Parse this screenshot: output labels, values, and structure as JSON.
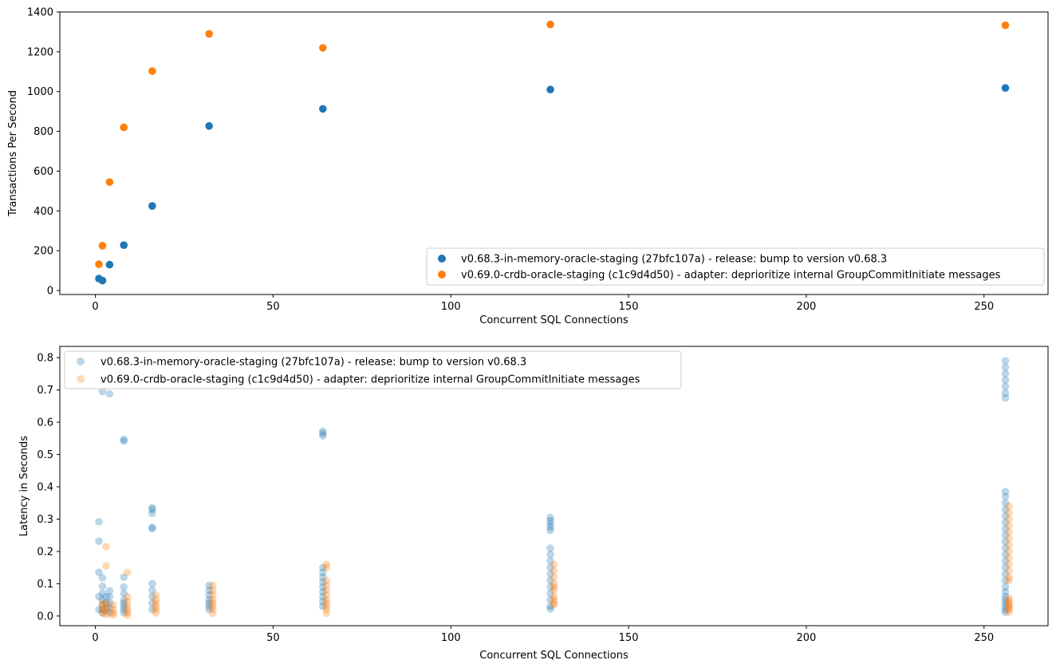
{
  "colors": {
    "series_a": "#1f77b4",
    "series_b": "#ff7f0e"
  },
  "chart_data": [
    {
      "type": "scatter",
      "xlabel": "Concurrent SQL Connections",
      "ylabel": "Transactions Per Second",
      "xlim": [
        -10,
        268
      ],
      "ylim": [
        -20,
        1400
      ],
      "x_ticks": [
        0,
        50,
        100,
        150,
        200,
        250
      ],
      "y_ticks": [
        0,
        200,
        400,
        600,
        800,
        1000,
        1200,
        1400
      ],
      "legend_position": "bottom-right",
      "grid": false,
      "series": [
        {
          "name": "v0.68.3-in-memory-oracle-staging (27bfc107a) - release: bump to version v0.68.3",
          "x": [
            1,
            2,
            4,
            8,
            16,
            32,
            64,
            128,
            256
          ],
          "y": [
            60,
            50,
            130,
            228,
            425,
            827,
            913,
            1010,
            1018
          ]
        },
        {
          "name": "v0.69.0-crdb-oracle-staging (c1c9d4d50) - adapter: deprioritize internal GroupCommitInitiate messages",
          "x": [
            1,
            2,
            4,
            8,
            16,
            32,
            64,
            128,
            256
          ],
          "y": [
            132,
            225,
            545,
            820,
            1103,
            1290,
            1220,
            1337,
            1333
          ]
        }
      ]
    },
    {
      "type": "scatter",
      "xlabel": "Concurrent SQL Connections",
      "ylabel": "Latency in Seconds",
      "xlim": [
        -10,
        268
      ],
      "ylim": [
        -0.03,
        0.835
      ],
      "x_ticks": [
        0,
        50,
        100,
        150,
        200,
        250
      ],
      "y_ticks": [
        0.0,
        0.1,
        0.2,
        0.3,
        0.4,
        0.5,
        0.6,
        0.7,
        0.8
      ],
      "legend_position": "top-left",
      "grid": false,
      "series": [
        {
          "name": "v0.68.3-in-memory-oracle-staging (27bfc107a) - release: bump to version v0.68.3",
          "x": [
            1,
            1,
            1,
            1,
            1,
            2,
            2,
            2,
            2,
            2,
            2,
            2,
            2,
            3,
            3,
            3,
            4,
            4,
            4,
            4,
            4,
            4,
            8,
            8,
            8,
            8,
            8,
            8,
            8,
            8,
            8,
            8,
            16,
            16,
            16,
            16,
            16,
            16,
            16,
            16,
            16,
            16,
            32,
            32,
            32,
            32,
            32,
            32,
            32,
            64,
            64,
            64,
            64,
            64,
            64,
            64,
            64,
            64,
            64,
            64,
            64,
            128,
            128,
            128,
            128,
            128,
            128,
            128,
            128,
            128,
            128,
            128,
            128,
            128,
            128,
            128,
            128,
            256,
            256,
            256,
            256,
            256,
            256,
            256,
            256,
            256,
            256,
            256,
            256,
            256,
            256,
            256,
            256,
            256,
            256,
            256,
            256,
            256,
            256,
            256,
            256,
            256,
            256,
            256,
            256,
            256,
            256
          ],
          "y": [
            0.292,
            0.232,
            0.135,
            0.06,
            0.02,
            0.695,
            0.118,
            0.092,
            0.07,
            0.05,
            0.035,
            0.02,
            0.01,
            0.06,
            0.04,
            0.02,
            0.688,
            0.078,
            0.06,
            0.04,
            0.025,
            0.01,
            0.547,
            0.542,
            0.12,
            0.09,
            0.07,
            0.05,
            0.04,
            0.03,
            0.02,
            0.01,
            0.335,
            0.33,
            0.318,
            0.275,
            0.27,
            0.1,
            0.08,
            0.06,
            0.04,
            0.02,
            0.095,
            0.08,
            0.065,
            0.05,
            0.04,
            0.03,
            0.02,
            0.572,
            0.565,
            0.558,
            0.15,
            0.135,
            0.12,
            0.105,
            0.09,
            0.075,
            0.06,
            0.045,
            0.03,
            0.305,
            0.295,
            0.285,
            0.275,
            0.265,
            0.21,
            0.19,
            0.17,
            0.15,
            0.13,
            0.11,
            0.09,
            0.07,
            0.05,
            0.03,
            0.022,
            0.79,
            0.77,
            0.75,
            0.73,
            0.71,
            0.69,
            0.675,
            0.385,
            0.37,
            0.35,
            0.33,
            0.31,
            0.29,
            0.27,
            0.25,
            0.23,
            0.21,
            0.19,
            0.17,
            0.15,
            0.13,
            0.11,
            0.09,
            0.075,
            0.06,
            0.05,
            0.04,
            0.03,
            0.02,
            0.012
          ]
        },
        {
          "name": "v0.69.0-crdb-oracle-staging (c1c9d4d50) - adapter: deprioritize internal GroupCommitInitiate messages",
          "x": [
            2,
            2,
            2,
            2,
            3,
            3,
            3,
            3,
            3,
            3,
            5,
            5,
            5,
            5,
            9,
            9,
            9,
            9,
            9,
            9,
            9,
            17,
            17,
            17,
            17,
            17,
            17,
            33,
            33,
            33,
            33,
            33,
            33,
            33,
            33,
            65,
            65,
            65,
            65,
            65,
            65,
            65,
            65,
            65,
            65,
            65,
            129,
            129,
            129,
            129,
            129,
            129,
            129,
            129,
            129,
            129,
            257,
            257,
            257,
            257,
            257,
            257,
            257,
            257,
            257,
            257,
            257,
            257,
            257,
            257,
            257,
            257,
            257,
            257,
            257,
            257,
            257
          ],
          "y": [
            0.04,
            0.03,
            0.02,
            0.01,
            0.215,
            0.155,
            0.04,
            0.025,
            0.015,
            0.005,
            0.035,
            0.02,
            0.01,
            0.003,
            0.135,
            0.06,
            0.045,
            0.03,
            0.02,
            0.01,
            0.003,
            0.065,
            0.05,
            0.04,
            0.03,
            0.02,
            0.01,
            0.095,
            0.08,
            0.065,
            0.05,
            0.04,
            0.03,
            0.02,
            0.008,
            0.16,
            0.15,
            0.11,
            0.095,
            0.08,
            0.065,
            0.05,
            0.04,
            0.03,
            0.02,
            0.008,
            0.16,
            0.14,
            0.12,
            0.1,
            0.09,
            0.08,
            0.06,
            0.05,
            0.04,
            0.035,
            0.34,
            0.32,
            0.3,
            0.28,
            0.26,
            0.24,
            0.22,
            0.2,
            0.18,
            0.16,
            0.14,
            0.12,
            0.11,
            0.055,
            0.048,
            0.04,
            0.035,
            0.03,
            0.025,
            0.02,
            0.012
          ]
        }
      ]
    }
  ]
}
